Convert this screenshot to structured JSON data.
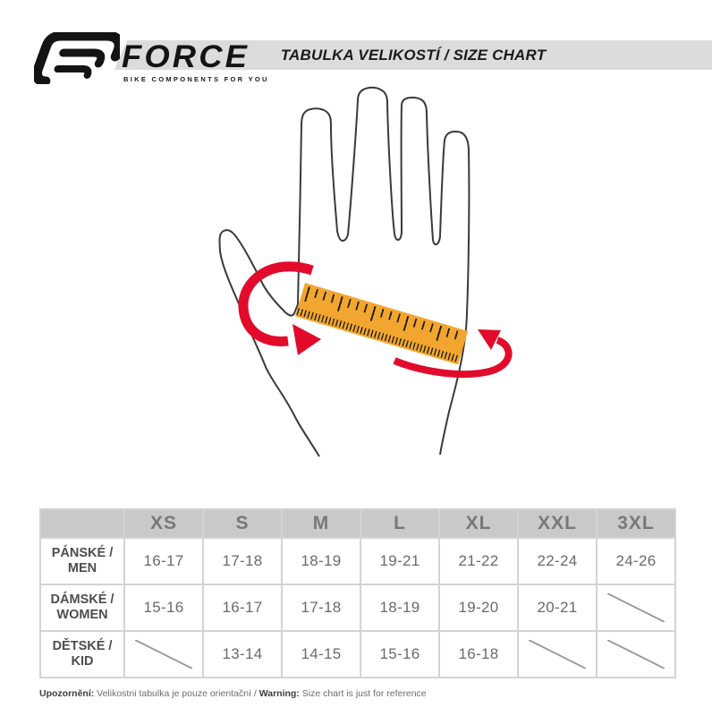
{
  "header": {
    "brand": "FORCE",
    "tagline": "BIKE COMPONENTS FOR YOU",
    "title": "TABULKA VELIKOSTÍ / SIZE CHART"
  },
  "illustration": {
    "description": "outline of a hand with an orange ruler measuring palm circumference and red wrap-around arrows",
    "colors": {
      "ruler_orange": "#F3A62F",
      "arrow_red": "#E30B2C",
      "hand_outline": "#3a3a38",
      "banner_gray": "#dcdcdc"
    }
  },
  "size_table": {
    "columns": [
      "XS",
      "S",
      "M",
      "L",
      "XL",
      "XXL",
      "3XL"
    ],
    "rows": [
      {
        "key": "men",
        "label_line1": "PÁNSKÉ /",
        "label_line2": "MEN",
        "values": [
          "16-17",
          "17-18",
          "18-19",
          "19-21",
          "21-22",
          "22-24",
          "24-26"
        ]
      },
      {
        "key": "women",
        "label_line1": "DÁMSKÉ /",
        "label_line2": "WOMEN",
        "values": [
          "15-16",
          "16-17",
          "17-18",
          "18-19",
          "19-20",
          "20-21",
          ""
        ]
      },
      {
        "key": "kid",
        "label_line1": "DĚTSKÉ /",
        "label_line2": "KID",
        "values": [
          "",
          "13-14",
          "14-15",
          "15-16",
          "16-18",
          "",
          ""
        ]
      }
    ]
  },
  "footnote": {
    "label_cz": "Upozornění:",
    "text_cz": " Velikostni tabulka je pouze orientační / ",
    "label_en": "Warning:",
    "text_en": " Size chart is just for reference"
  }
}
